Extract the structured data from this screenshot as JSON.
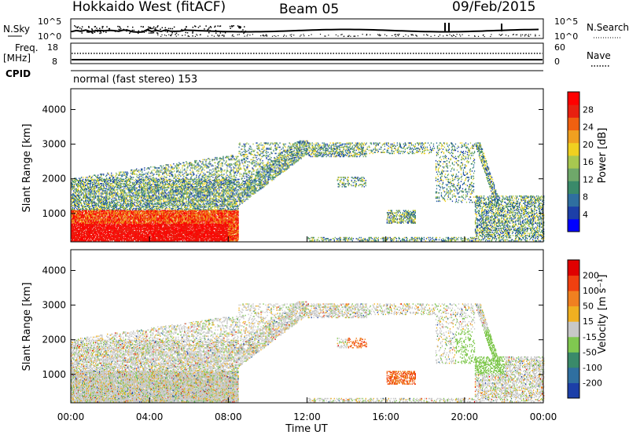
{
  "header": {
    "radar": "Hokkaido West (fitACF)",
    "beam": "Beam 05",
    "date": "09/Feb/2015"
  },
  "top_panels": {
    "nsky_label": "N.Sky",
    "nsearch_label": "N.Search",
    "nsky_ticks": [
      "10^5",
      "10^0"
    ],
    "nsearch_ticks": [
      "10^5",
      "10^0"
    ],
    "freq_label_1": "Freq.",
    "freq_label_2": "[MHz]",
    "freq_ticks": [
      "18",
      "8"
    ],
    "nave_label": "Nave",
    "nave_ticks": [
      "60",
      "0"
    ],
    "cpid_label": "CPID",
    "cpid_text": "normal (fast stereo) 153"
  },
  "chart_data": [
    {
      "type": "heatmap",
      "name": "power",
      "ylabel": "Slant Range [km]",
      "yticks": [
        1000,
        2000,
        3000,
        4000
      ],
      "ylim": [
        180,
        4600
      ],
      "xlim": [
        0,
        24
      ],
      "colorbar_label": "Power [dB]",
      "colorbar_ticks": [
        "28",
        "24",
        "20",
        "16",
        "12",
        "8",
        "4"
      ],
      "colors": [
        "#0000ff",
        "#1c3fa8",
        "#2f6fa0",
        "#3a8a6a",
        "#6fa86a",
        "#a8c850",
        "#f0d020",
        "#f0a020",
        "#f06010",
        "#e82010",
        "#ff0000"
      ]
    },
    {
      "type": "heatmap",
      "name": "velocity",
      "ylabel": "Slant Range [km]",
      "yticks": [
        1000,
        2000,
        3000,
        4000
      ],
      "ylim": [
        180,
        4600
      ],
      "xlim": [
        0,
        24
      ],
      "xlabel": "Time UT",
      "xticks": [
        "00:00",
        "04:00",
        "08:00",
        "12:00",
        "16:00",
        "20:00",
        "00:00"
      ],
      "colorbar_label": "Velocity [m s⁻¹]",
      "colorbar_ticks": [
        "200",
        "100",
        "50",
        "15",
        "-15",
        "-50",
        "-100",
        "-200"
      ],
      "colors": [
        "#1c3fa8",
        "#2f6fa0",
        "#3a8a6a",
        "#80c850",
        "#c8c8c8",
        "#f0b020",
        "#f08020",
        "#f04010",
        "#e00000"
      ]
    }
  ]
}
